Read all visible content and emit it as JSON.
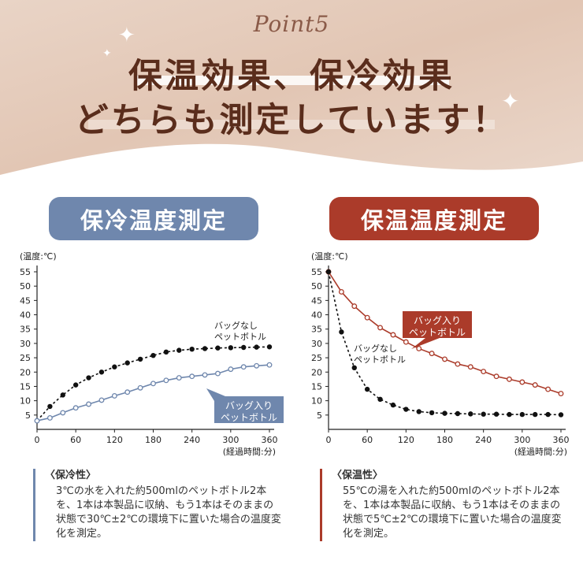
{
  "header": {
    "point_label": "Point5",
    "line1": "保温効果、保冷効果",
    "line2": "どちらも測定しています！"
  },
  "colors": {
    "header_bg": "#e6cfc0",
    "cold": "#6f87ad",
    "warm": "#ab3b2a",
    "no_bag": "#111111"
  },
  "chart_data": [
    {
      "type": "line",
      "panel_title": "保冷温度測定",
      "ylabel": "(温度:℃)",
      "xlabel": "(経過時間:分)",
      "xlim": [
        0,
        360
      ],
      "ylim": [
        0,
        55
      ],
      "xticks": [
        0,
        60,
        120,
        180,
        240,
        300,
        360
      ],
      "yticks": [
        5,
        10,
        15,
        20,
        25,
        30,
        35,
        40,
        45,
        50,
        55
      ],
      "grid": false,
      "series": [
        {
          "name": "バッグなし\nペットボトル",
          "color": "#111111",
          "style": "dotted",
          "label_lines": [
            "バッグなし",
            "ペットボトル"
          ],
          "x": [
            0,
            20,
            40,
            60,
            80,
            100,
            120,
            140,
            160,
            180,
            200,
            220,
            240,
            260,
            280,
            300,
            320,
            340,
            360
          ],
          "y": [
            3,
            8,
            12,
            15.5,
            18,
            20,
            21.8,
            23.2,
            24.5,
            25.8,
            27,
            27.6,
            28,
            28.2,
            28.4,
            28.5,
            28.6,
            28.7,
            28.8
          ]
        },
        {
          "name": "バッグ入り\nペットボトル",
          "color": "#6f87ad",
          "style": "solid",
          "label_lines": [
            "バッグ入り",
            "ペットボトル"
          ],
          "x": [
            0,
            20,
            40,
            60,
            80,
            100,
            120,
            140,
            160,
            180,
            200,
            220,
            240,
            260,
            280,
            300,
            320,
            340,
            360
          ],
          "y": [
            3,
            4,
            5.8,
            7.5,
            8.8,
            10.2,
            11.7,
            13,
            14.5,
            16,
            17.1,
            18,
            18.5,
            19,
            19.5,
            21,
            21.8,
            22.2,
            22.5
          ]
        }
      ]
    },
    {
      "type": "line",
      "panel_title": "保温温度測定",
      "ylabel": "(温度:℃)",
      "xlabel": "(経過時間:分)",
      "xlim": [
        0,
        360
      ],
      "ylim": [
        0,
        55
      ],
      "xticks": [
        0,
        60,
        120,
        180,
        240,
        300,
        360
      ],
      "yticks": [
        5,
        10,
        15,
        20,
        25,
        30,
        35,
        40,
        45,
        50,
        55
      ],
      "grid": false,
      "series": [
        {
          "name": "バッグ入り\nペットボトル",
          "color": "#ab3b2a",
          "style": "solid",
          "label_lines": [
            "バッグ入り",
            "ペットボトル"
          ],
          "x": [
            0,
            20,
            40,
            60,
            80,
            100,
            120,
            140,
            160,
            180,
            200,
            220,
            240,
            260,
            280,
            300,
            320,
            340,
            360
          ],
          "y": [
            55,
            48,
            43,
            39,
            35.5,
            33,
            30.5,
            28.2,
            26.5,
            24.5,
            22.8,
            21.8,
            20.2,
            18.5,
            17.5,
            16.5,
            15.5,
            14,
            12.5
          ]
        },
        {
          "name": "バッグなし\nペットボトル",
          "color": "#111111",
          "style": "dotted",
          "label_lines": [
            "バッグなし",
            "ペットボトル"
          ],
          "x": [
            0,
            20,
            40,
            60,
            80,
            100,
            120,
            140,
            160,
            180,
            200,
            220,
            240,
            260,
            280,
            300,
            320,
            340,
            360
          ],
          "y": [
            55,
            34,
            21.5,
            14,
            10.5,
            8.5,
            7,
            6.2,
            5.8,
            5.6,
            5.5,
            5.4,
            5.3,
            5.3,
            5.2,
            5.2,
            5.2,
            5.2,
            5.1
          ]
        }
      ]
    }
  ],
  "notes": {
    "cold": {
      "title": "〈保冷性〉",
      "body": "3℃の水を入れた約500mlのペットボトル2本を、1本は本製品に収納、もう1本はそのままの状態で30℃±2℃の環境下に置いた場合の温度変化を測定。"
    },
    "warm": {
      "title": "〈保温性〉",
      "body": "55℃の湯を入れた約500mlのペットボトル2本を、1本は本製品に収納、もう1本はそのままの状態で5℃±2℃の環境下に置いた場合の温度変化を測定。"
    }
  }
}
